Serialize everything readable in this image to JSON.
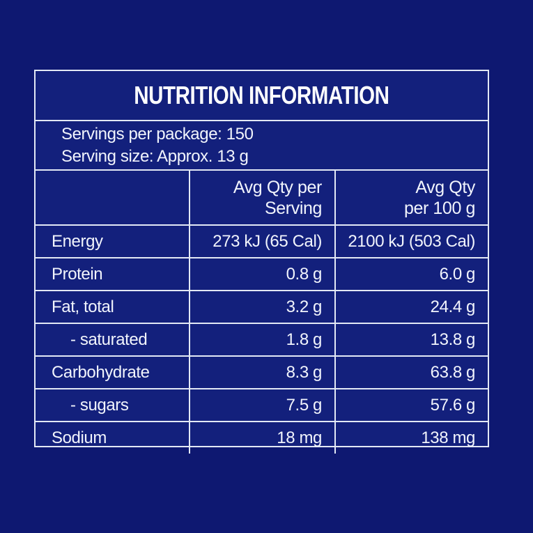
{
  "panel": {
    "title": "NUTRITION INFORMATION",
    "servings_per_package": "Servings per package: 150",
    "serving_size": "Serving size: Approx. 13 g",
    "columns": {
      "nutrient": "",
      "per_serving": "Avg Qty per\nServing",
      "per_100g": "Avg Qty\nper 100 g"
    },
    "rows": [
      {
        "label": "Energy",
        "per_serving": "273 kJ (65 Cal)",
        "per_100g": "2100 kJ (503 Cal)",
        "indent": false
      },
      {
        "label": "Protein",
        "per_serving": "0.8 g",
        "per_100g": "6.0 g",
        "indent": false
      },
      {
        "label": "Fat, total",
        "per_serving": "3.2 g",
        "per_100g": "24.4 g",
        "indent": false
      },
      {
        "label": "- saturated",
        "per_serving": "1.8 g",
        "per_100g": "13.8 g",
        "indent": true
      },
      {
        "label": "Carbohydrate",
        "per_serving": "8.3 g",
        "per_100g": "63.8 g",
        "indent": false
      },
      {
        "label": "- sugars",
        "per_serving": "7.5 g",
        "per_100g": "57.6 g",
        "indent": true
      },
      {
        "label": "Sodium",
        "per_serving": "18 mg",
        "per_100g": "138 mg",
        "indent": false
      }
    ],
    "colors": {
      "page_background": "#0e1871",
      "panel_background": "#13207c",
      "border": "#e3e9f5",
      "text": "#f1f4fc",
      "title_text": "#ffffff"
    }
  }
}
